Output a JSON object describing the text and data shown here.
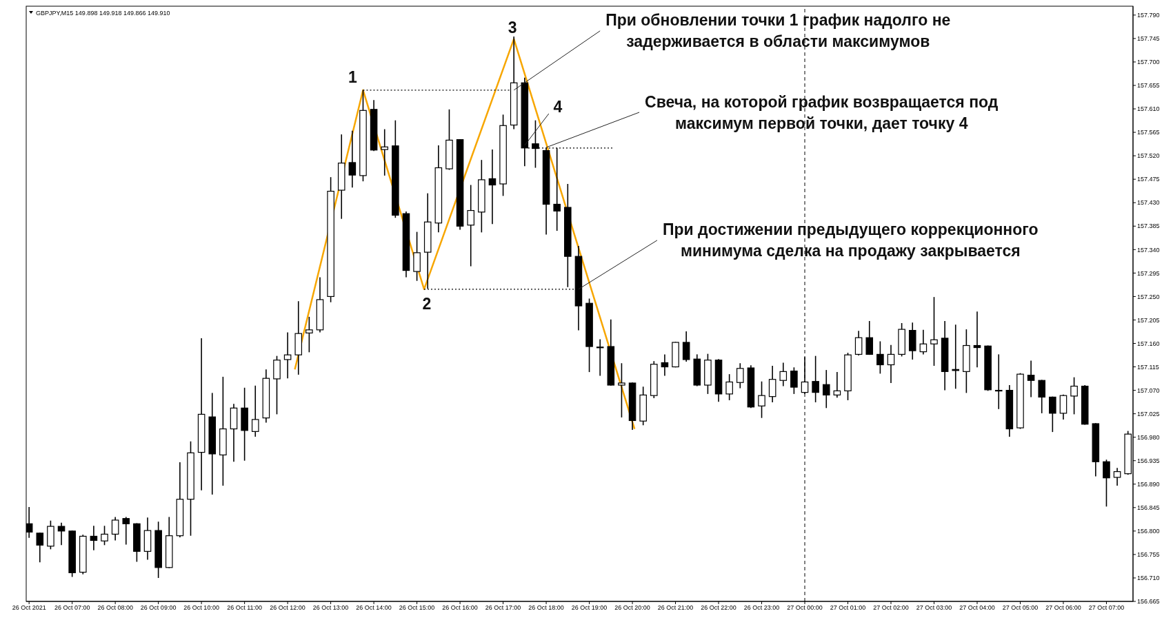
{
  "chart_data": {
    "type": "candlestick",
    "title": "GBPJPY,M15  149.898 149.918 149.866 149.910",
    "color": "#000000",
    "x": [
      "2021-10-26T06:00",
      "2021-10-26T06:15",
      "2021-10-26T06:30",
      "2021-10-26T06:45",
      "2021-10-26T07:00",
      "2021-10-26T07:15",
      "2021-10-26T07:30",
      "2021-10-26T07:45",
      "2021-10-26T08:00",
      "2021-10-26T08:15",
      "2021-10-26T08:30",
      "2021-10-26T08:45",
      "2021-10-26T09:00",
      "2021-10-26T09:15",
      "2021-10-26T09:30",
      "2021-10-26T09:45",
      "2021-10-26T10:00",
      "2021-10-26T10:15",
      "2021-10-26T10:30",
      "2021-10-26T10:45",
      "2021-10-26T11:00",
      "2021-10-26T11:15",
      "2021-10-26T11:30",
      "2021-10-26T11:45",
      "2021-10-26T12:00",
      "2021-10-26T12:15",
      "2021-10-26T12:30",
      "2021-10-26T12:45",
      "2021-10-26T13:00",
      "2021-10-26T13:15",
      "2021-10-26T13:30",
      "2021-10-26T13:45",
      "2021-10-26T14:00",
      "2021-10-26T14:15",
      "2021-10-26T14:30",
      "2021-10-26T14:45",
      "2021-10-26T15:00",
      "2021-10-26T15:15",
      "2021-10-26T15:30",
      "2021-10-26T15:45",
      "2021-10-26T16:00",
      "2021-10-26T16:15",
      "2021-10-26T16:30",
      "2021-10-26T16:45",
      "2021-10-26T17:00",
      "2021-10-26T17:15",
      "2021-10-26T17:30",
      "2021-10-26T17:45",
      "2021-10-26T18:00",
      "2021-10-26T18:15",
      "2021-10-26T18:30",
      "2021-10-26T18:45",
      "2021-10-26T19:00",
      "2021-10-26T19:15",
      "2021-10-26T19:30",
      "2021-10-26T19:45",
      "2021-10-26T20:00",
      "2021-10-26T20:15",
      "2021-10-26T20:30",
      "2021-10-26T20:45",
      "2021-10-26T21:00",
      "2021-10-26T21:15",
      "2021-10-26T21:30",
      "2021-10-26T21:45",
      "2021-10-26T22:00",
      "2021-10-26T22:15",
      "2021-10-26T22:30",
      "2021-10-26T22:45",
      "2021-10-26T23:00",
      "2021-10-26T23:15",
      "2021-10-26T23:30",
      "2021-10-26T23:45",
      "2021-10-27T00:00",
      "2021-10-27T00:15",
      "2021-10-27T00:30",
      "2021-10-27T00:45",
      "2021-10-27T01:00",
      "2021-10-27T01:15",
      "2021-10-27T01:30",
      "2021-10-27T01:45",
      "2021-10-27T02:00",
      "2021-10-27T02:15",
      "2021-10-27T02:30",
      "2021-10-27T02:45",
      "2021-10-27T03:00",
      "2021-10-27T03:15",
      "2021-10-27T03:30",
      "2021-10-27T03:45",
      "2021-10-27T04:00",
      "2021-10-27T04:15",
      "2021-10-27T04:30",
      "2021-10-27T04:45",
      "2021-10-27T05:00",
      "2021-10-27T05:15",
      "2021-10-27T05:30",
      "2021-10-27T05:45",
      "2021-10-27T06:00",
      "2021-10-27T06:15",
      "2021-10-27T06:30",
      "2021-10-27T06:45",
      "2021-10-27T07:00",
      "2021-10-27T07:15",
      "2021-10-27T07:30"
    ],
    "ohlc": [
      [
        156.814,
        156.846,
        156.787,
        156.798
      ],
      [
        156.796,
        156.797,
        156.74,
        156.773
      ],
      [
        156.771,
        156.82,
        156.765,
        156.809
      ],
      [
        156.809,
        156.816,
        156.773,
        156.8
      ],
      [
        156.8,
        156.801,
        156.712,
        156.72
      ],
      [
        156.721,
        156.793,
        156.717,
        156.79
      ],
      [
        156.79,
        156.81,
        156.763,
        156.782
      ],
      [
        156.781,
        156.81,
        156.773,
        156.794
      ],
      [
        156.794,
        156.827,
        156.782,
        156.821
      ],
      [
        156.824,
        156.827,
        156.774,
        156.814
      ],
      [
        156.814,
        156.815,
        156.741,
        156.761
      ],
      [
        156.761,
        156.826,
        156.745,
        156.801
      ],
      [
        156.801,
        156.818,
        156.71,
        156.73
      ],
      [
        156.73,
        156.827,
        156.729,
        156.791
      ],
      [
        156.791,
        156.932,
        156.788,
        156.861
      ],
      [
        156.861,
        156.972,
        156.791,
        156.95
      ],
      [
        156.951,
        157.17,
        156.878,
        157.024
      ],
      [
        157.019,
        157.065,
        156.87,
        156.948
      ],
      [
        156.946,
        157.096,
        156.887,
        156.996
      ],
      [
        156.996,
        157.044,
        156.933,
        157.036
      ],
      [
        157.036,
        157.075,
        156.935,
        156.993
      ],
      [
        156.991,
        157.079,
        156.981,
        157.014
      ],
      [
        157.017,
        157.11,
        157.008,
        157.093
      ],
      [
        157.092,
        157.136,
        157.024,
        157.128
      ],
      [
        157.129,
        157.181,
        157.093,
        157.138
      ],
      [
        157.138,
        157.241,
        157.1,
        157.179
      ],
      [
        157.18,
        157.211,
        157.143,
        157.186
      ],
      [
        157.186,
        157.287,
        157.181,
        157.244
      ],
      [
        157.25,
        157.479,
        157.239,
        157.452
      ],
      [
        157.454,
        157.561,
        157.399,
        157.506
      ],
      [
        157.507,
        157.568,
        157.459,
        157.483
      ],
      [
        157.482,
        157.646,
        157.471,
        157.607
      ],
      [
        157.609,
        157.627,
        157.529,
        157.531
      ],
      [
        157.532,
        157.571,
        157.482,
        157.537
      ],
      [
        157.539,
        157.588,
        157.401,
        157.406
      ],
      [
        157.409,
        157.413,
        157.287,
        157.3
      ],
      [
        157.298,
        157.374,
        157.28,
        157.334
      ],
      [
        157.335,
        157.448,
        157.265,
        157.393
      ],
      [
        157.391,
        157.54,
        157.373,
        157.497
      ],
      [
        157.495,
        157.609,
        157.493,
        157.55
      ],
      [
        157.551,
        157.552,
        157.378,
        157.385
      ],
      [
        157.387,
        157.464,
        157.308,
        157.415
      ],
      [
        157.412,
        157.512,
        157.373,
        157.474
      ],
      [
        157.476,
        157.532,
        157.389,
        157.464
      ],
      [
        157.466,
        157.599,
        157.443,
        157.578
      ],
      [
        157.579,
        157.749,
        157.571,
        157.66
      ],
      [
        157.66,
        157.67,
        157.5,
        157.535
      ],
      [
        157.543,
        157.588,
        157.497,
        157.534
      ],
      [
        157.53,
        157.535,
        157.369,
        157.427
      ],
      [
        157.427,
        157.535,
        157.376,
        157.414
      ],
      [
        157.421,
        157.466,
        157.268,
        157.327
      ],
      [
        157.327,
        157.347,
        157.185,
        157.232
      ],
      [
        157.237,
        157.246,
        157.105,
        157.154
      ],
      [
        157.153,
        157.168,
        157.098,
        157.152
      ],
      [
        157.154,
        157.206,
        157.079,
        157.08
      ],
      [
        157.08,
        157.122,
        157.018,
        157.084
      ],
      [
        157.084,
        157.085,
        156.994,
        157.012
      ],
      [
        157.011,
        157.077,
        157.003,
        157.061
      ],
      [
        157.06,
        157.126,
        157.055,
        157.12
      ],
      [
        157.123,
        157.139,
        157.098,
        157.115
      ],
      [
        157.115,
        157.163,
        157.114,
        157.162
      ],
      [
        157.162,
        157.183,
        157.125,
        157.129
      ],
      [
        157.13,
        157.139,
        157.078,
        157.08
      ],
      [
        157.08,
        157.14,
        157.063,
        157.128
      ],
      [
        157.128,
        157.13,
        157.048,
        157.063
      ],
      [
        157.063,
        157.101,
        157.051,
        157.086
      ],
      [
        157.085,
        157.122,
        157.074,
        157.112
      ],
      [
        157.113,
        157.118,
        157.036,
        157.038
      ],
      [
        157.04,
        157.087,
        157.017,
        157.06
      ],
      [
        157.058,
        157.117,
        157.047,
        157.091
      ],
      [
        157.089,
        157.123,
        157.078,
        157.106
      ],
      [
        157.107,
        157.114,
        157.063,
        157.076
      ],
      [
        157.066,
        157.134,
        157.063,
        157.086
      ],
      [
        157.087,
        157.136,
        157.047,
        157.066
      ],
      [
        157.081,
        157.109,
        157.036,
        157.061
      ],
      [
        157.061,
        157.105,
        157.056,
        157.069
      ],
      [
        157.069,
        157.142,
        157.051,
        157.138
      ],
      [
        157.139,
        157.184,
        157.137,
        157.171
      ],
      [
        157.171,
        157.203,
        157.138,
        157.139
      ],
      [
        157.139,
        157.164,
        157.102,
        157.119
      ],
      [
        157.119,
        157.157,
        157.084,
        157.139
      ],
      [
        157.139,
        157.199,
        157.135,
        157.187
      ],
      [
        157.185,
        157.2,
        157.129,
        157.146
      ],
      [
        157.144,
        157.186,
        157.139,
        157.159
      ],
      [
        157.159,
        157.249,
        157.117,
        157.167
      ],
      [
        157.17,
        157.203,
        157.07,
        157.106
      ],
      [
        157.11,
        157.196,
        157.073,
        157.108
      ],
      [
        157.106,
        157.187,
        157.065,
        157.156
      ],
      [
        157.156,
        157.221,
        157.114,
        157.152
      ],
      [
        157.155,
        157.156,
        157.069,
        157.071
      ],
      [
        157.07,
        157.139,
        157.034,
        157.069
      ],
      [
        157.07,
        157.08,
        156.981,
        156.996
      ],
      [
        156.998,
        157.103,
        156.996,
        157.101
      ],
      [
        157.099,
        157.127,
        157.057,
        157.089
      ],
      [
        157.089,
        157.09,
        157.026,
        157.057
      ],
      [
        157.057,
        157.058,
        156.99,
        157.026
      ],
      [
        157.026,
        157.062,
        157.014,
        157.06
      ],
      [
        157.059,
        157.095,
        157.024,
        157.078
      ],
      [
        157.078,
        157.08,
        157.004,
        157.005
      ],
      [
        157.006,
        157.007,
        156.905,
        156.933
      ],
      [
        156.933,
        156.937,
        156.847,
        156.902
      ],
      [
        156.903,
        156.921,
        156.887,
        156.914
      ],
      [
        156.91,
        156.992,
        156.908,
        156.986
      ]
    ],
    "series": [
      {
        "type": "line",
        "color": "#f7a600",
        "line_style": "solid",
        "x": [
          "2021-10-26T12:10",
          "2021-10-26T13:45",
          "2021-10-26T15:10",
          "2021-10-26T17:15",
          "2021-10-26T20:03"
        ],
        "values": [
          157.11,
          157.646,
          157.264,
          157.744,
          156.996
        ]
      },
      {
        "type": "line",
        "color": "#000000",
        "line_style": "dotted",
        "x": [
          "2021-10-26T13:45",
          "2021-10-26T17:14"
        ],
        "values": [
          157.646,
          157.646
        ]
      },
      {
        "type": "line",
        "color": "#000000",
        "line_style": "dotted",
        "x": [
          "2021-10-26T17:35",
          "2021-10-26T19:33"
        ],
        "values": [
          157.535,
          157.535
        ]
      },
      {
        "type": "line",
        "color": "#000000",
        "line_style": "dotted",
        "x": [
          "2021-10-26T15:10",
          "2021-10-26T18:39"
        ],
        "values": [
          157.264,
          157.264
        ]
      }
    ],
    "xlim": [
      "2021-10-26T05:56",
      "2021-10-27T07:37"
    ],
    "xticks": [
      {
        "value": "2021-10-26T06:00",
        "label": "26 Oct 2021"
      },
      {
        "value": "2021-10-26T07:00",
        "label": "26 Oct 07:00"
      },
      {
        "value": "2021-10-26T08:00",
        "label": "26 Oct 08:00"
      },
      {
        "value": "2021-10-26T09:00",
        "label": "26 Oct 09:00"
      },
      {
        "value": "2021-10-26T10:00",
        "label": "26 Oct 10:00"
      },
      {
        "value": "2021-10-26T11:00",
        "label": "26 Oct 11:00"
      },
      {
        "value": "2021-10-26T12:00",
        "label": "26 Oct 12:00"
      },
      {
        "value": "2021-10-26T13:00",
        "label": "26 Oct 13:00"
      },
      {
        "value": "2021-10-26T14:00",
        "label": "26 Oct 14:00"
      },
      {
        "value": "2021-10-26T15:00",
        "label": "26 Oct 15:00"
      },
      {
        "value": "2021-10-26T16:00",
        "label": "26 Oct 16:00"
      },
      {
        "value": "2021-10-26T17:00",
        "label": "26 Oct 17:00"
      },
      {
        "value": "2021-10-26T18:00",
        "label": "26 Oct 18:00"
      },
      {
        "value": "2021-10-26T19:00",
        "label": "26 Oct 19:00"
      },
      {
        "value": "2021-10-26T20:00",
        "label": "26 Oct 20:00"
      },
      {
        "value": "2021-10-26T21:00",
        "label": "26 Oct 21:00"
      },
      {
        "value": "2021-10-26T22:00",
        "label": "26 Oct 22:00"
      },
      {
        "value": "2021-10-26T23:00",
        "label": "26 Oct 23:00"
      },
      {
        "value": "2021-10-27T00:00",
        "label": "27 Oct 00:00"
      },
      {
        "value": "2021-10-27T01:00",
        "label": "27 Oct 01:00"
      },
      {
        "value": "2021-10-27T02:00",
        "label": "27 Oct 02:00"
      },
      {
        "value": "2021-10-27T03:00",
        "label": "27 Oct 03:00"
      },
      {
        "value": "2021-10-27T04:00",
        "label": "27 Oct 04:00"
      },
      {
        "value": "2021-10-27T05:00",
        "label": "27 Oct 05:00"
      },
      {
        "value": "2021-10-27T06:00",
        "label": "27 Oct 06:00"
      },
      {
        "value": "2021-10-27T07:00",
        "label": "27 Oct 07:00"
      }
    ],
    "ylim": [
      156.665,
      157.807
    ],
    "yticks": [
      {
        "value": 156.665,
        "label": "156.665"
      },
      {
        "value": 156.71,
        "label": "156.710"
      },
      {
        "value": 156.755,
        "label": "156.755"
      },
      {
        "value": 156.8,
        "label": "156.800"
      },
      {
        "value": 156.845,
        "label": "156.845"
      },
      {
        "value": 156.89,
        "label": "156.890"
      },
      {
        "value": 156.935,
        "label": "156.935"
      },
      {
        "value": 156.98,
        "label": "156.980"
      },
      {
        "value": 157.025,
        "label": "157.025"
      },
      {
        "value": 157.07,
        "label": "157.070"
      },
      {
        "value": 157.115,
        "label": "157.115"
      },
      {
        "value": 157.16,
        "label": "157.160"
      },
      {
        "value": 157.205,
        "label": "157.205"
      },
      {
        "value": 157.25,
        "label": "157.250"
      },
      {
        "value": 157.295,
        "label": "157.295"
      },
      {
        "value": 157.34,
        "label": "157.340"
      },
      {
        "value": 157.385,
        "label": "157.385"
      },
      {
        "value": 157.43,
        "label": "157.430"
      },
      {
        "value": 157.475,
        "label": "157.475"
      },
      {
        "value": 157.52,
        "label": "157.520"
      },
      {
        "value": 157.565,
        "label": "157.565"
      },
      {
        "value": 157.61,
        "label": "157.610"
      },
      {
        "value": 157.655,
        "label": "157.655"
      },
      {
        "value": 157.7,
        "label": "157.700"
      },
      {
        "value": 157.745,
        "label": "157.745"
      },
      {
        "value": 157.79,
        "label": "157.790"
      }
    ],
    "ref_lines": [
      {
        "axis": "x",
        "value": "2021-10-27T00:00",
        "color": "#000000",
        "line_style": "dashed"
      }
    ],
    "annotations": [
      {
        "text": "1",
        "x": "2021-10-26T13:45",
        "y": 157.646
      },
      {
        "text": "2",
        "x": "2021-10-26T15:10",
        "y": 157.264
      },
      {
        "text": "3",
        "x": "2021-10-26T17:15",
        "y": 157.744
      },
      {
        "text": "4",
        "x": "2021-10-26T17:30",
        "y": 157.54
      },
      {
        "text": "При обновлении точки 1 график надолго не задерживается в области максимумов",
        "x": "2021-10-26T17:15",
        "y": 157.646
      },
      {
        "text": "Свеча, на которой график возвращается под максимум первой точки, дает точку 4",
        "x": "2021-10-26T18:00",
        "y": 157.536
      },
      {
        "text": "При достижении предыдущего коррекционного минимума сделка на продажу закрывается",
        "x": "2021-10-26T18:45",
        "y": 157.264
      }
    ]
  }
}
